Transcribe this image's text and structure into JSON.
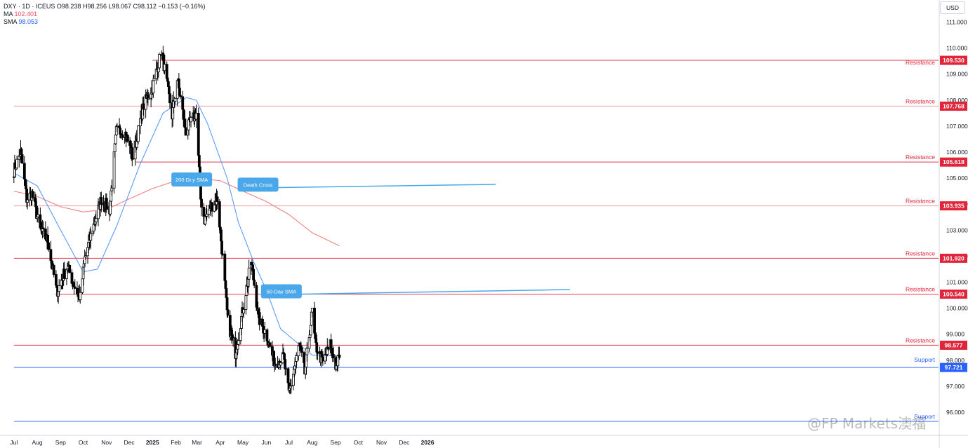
{
  "legend": {
    "symbol": "DXY · 1D · ICEUS",
    "open_label": "O",
    "open": "98.238",
    "high_label": "H",
    "high": "98.256",
    "low_label": "L",
    "low": "98.067",
    "close_label": "C",
    "close": "98.112",
    "change": "−0.153 (−0.16%)",
    "ma_label": "MA",
    "ma_value": "102.401",
    "sma_label": "SMA",
    "sma_value": "98.053"
  },
  "currency": "USD",
  "watermark": "@FP Markets澳福",
  "colors": {
    "up_candle": "#ffffff",
    "down_candle": "#000000",
    "resistance": "#e0243a",
    "support": "#2962ff",
    "sma50": "#5b9cf6",
    "sma200": "#f08080",
    "callout": "#4aa8ea"
  },
  "chart_data": {
    "type": "candlestick",
    "ylim": [
      95.7,
      111.6
    ],
    "y_ticks": [
      "111.000",
      "110.000",
      "109.000",
      "108.000",
      "107.000",
      "106.000",
      "105.000",
      "104.000",
      "103.000",
      "102.000",
      "101.000",
      "100.000",
      "99.000",
      "98.000",
      "97.000",
      "96.000"
    ],
    "x_ticks": [
      "Jul",
      "Aug",
      "Sep",
      "Oct",
      "Nov",
      "Dec",
      "2025",
      "Feb",
      "Mar",
      "Apr",
      "May",
      "Jun",
      "Jul",
      "Aug",
      "Sep",
      "Oct",
      "Nov",
      "Dec",
      "2026"
    ],
    "levels": [
      {
        "value": 109.53,
        "label": "Resistance",
        "tag": "109.530",
        "kind": "resistance",
        "start": "2025-01-01"
      },
      {
        "value": 107.768,
        "label": "Resistance",
        "tag": "107.768",
        "kind": "resistance",
        "start": "2024-07-01"
      },
      {
        "value": 105.618,
        "label": "Resistance",
        "tag": "105.618",
        "kind": "resistance",
        "start": "2024-12-10"
      },
      {
        "value": 103.935,
        "label": "Resistance",
        "tag": "103.935",
        "kind": "resistance",
        "start": "2024-07-01"
      },
      {
        "value": 101.92,
        "label": "Resistance",
        "tag": "101.920",
        "kind": "resistance",
        "start": "2024-07-01"
      },
      {
        "value": 100.54,
        "label": "Resistance",
        "tag": "100.540",
        "kind": "resistance",
        "start": "2024-08-25"
      },
      {
        "value": 98.577,
        "label": "Resistance",
        "tag": "98.577",
        "kind": "resistance",
        "start": "2024-07-01"
      },
      {
        "value": 97.721,
        "label": "Support",
        "tag": "97.721",
        "kind": "support",
        "start": "2024-07-01"
      },
      {
        "value": 95.65,
        "label": "Support",
        "tag": "",
        "kind": "support",
        "start": "2024-07-01"
      }
    ],
    "annotations": [
      {
        "text": "Death Cross",
        "x": "2025-04-24",
        "y": 104.75
      },
      {
        "text": "200 Day SMA",
        "x": "2025-01-26",
        "y": 104.95
      },
      {
        "text": "50-Day SMA",
        "x": "2025-05-25",
        "y": 100.65
      }
    ],
    "anchors": [
      [
        "2024-07-01",
        105.3
      ],
      [
        "2024-07-10",
        106.0
      ],
      [
        "2024-07-18",
        104.2
      ],
      [
        "2024-07-25",
        104.4
      ],
      [
        "2024-08-05",
        103.0
      ],
      [
        "2024-08-15",
        102.6
      ],
      [
        "2024-08-27",
        100.6
      ],
      [
        "2024-09-05",
        101.3
      ],
      [
        "2024-09-10",
        101.6
      ],
      [
        "2024-09-20",
        100.8
      ],
      [
        "2024-09-27",
        100.4
      ],
      [
        "2024-10-03",
        101.9
      ],
      [
        "2024-10-15",
        103.2
      ],
      [
        "2024-10-25",
        104.2
      ],
      [
        "2024-11-05",
        103.8
      ],
      [
        "2024-11-14",
        106.8
      ],
      [
        "2024-11-25",
        106.8
      ],
      [
        "2024-12-06",
        105.8
      ],
      [
        "2024-12-20",
        107.8
      ],
      [
        "2025-01-01",
        108.5
      ],
      [
        "2025-01-13",
        109.9
      ],
      [
        "2025-01-27",
        107.4
      ],
      [
        "2025-02-03",
        108.8
      ],
      [
        "2025-02-14",
        106.8
      ],
      [
        "2025-02-28",
        107.5
      ],
      [
        "2025-03-06",
        104.2
      ],
      [
        "2025-03-11",
        103.4
      ],
      [
        "2025-03-19",
        103.9
      ],
      [
        "2025-03-28",
        104.2
      ],
      [
        "2025-04-03",
        102.3
      ],
      [
        "2025-04-11",
        99.5
      ],
      [
        "2025-04-21",
        98.3
      ],
      [
        "2025-05-12",
        101.8
      ],
      [
        "2025-05-22",
        99.6
      ],
      [
        "2025-06-01",
        99.0
      ],
      [
        "2025-06-12",
        97.9
      ],
      [
        "2025-06-24",
        98.1
      ],
      [
        "2025-07-01",
        96.7
      ],
      [
        "2025-07-15",
        98.6
      ],
      [
        "2025-07-22",
        97.5
      ],
      [
        "2025-08-01",
        99.9
      ],
      [
        "2025-08-05",
        98.6
      ],
      [
        "2025-08-15",
        97.9
      ],
      [
        "2025-08-25",
        98.6
      ],
      [
        "2025-09-01",
        97.8
      ],
      [
        "2025-09-06",
        98.1
      ]
    ],
    "sma50": [
      [
        "2024-07-01",
        105.2
      ],
      [
        "2024-08-01",
        104.7
      ],
      [
        "2024-09-01",
        103.0
      ],
      [
        "2024-10-01",
        101.4
      ],
      [
        "2024-10-20",
        101.5
      ],
      [
        "2024-11-15",
        103.2
      ],
      [
        "2024-12-15",
        105.5
      ],
      [
        "2025-01-15",
        107.5
      ],
      [
        "2025-02-15",
        108.1
      ],
      [
        "2025-02-28",
        108.0
      ],
      [
        "2025-03-15",
        107.1
      ],
      [
        "2025-04-10",
        105.0
      ],
      [
        "2025-04-25",
        103.3
      ],
      [
        "2025-05-15",
        101.8
      ],
      [
        "2025-06-01",
        100.7
      ],
      [
        "2025-06-20",
        99.2
      ],
      [
        "2025-07-15",
        98.6
      ],
      [
        "2025-08-01",
        98.2
      ],
      [
        "2025-08-20",
        98.2
      ],
      [
        "2025-09-06",
        98.1
      ]
    ],
    "sma200": [
      [
        "2024-07-01",
        104.5
      ],
      [
        "2024-08-01",
        104.3
      ],
      [
        "2024-09-01",
        103.9
      ],
      [
        "2024-10-01",
        103.7
      ],
      [
        "2024-11-01",
        103.8
      ],
      [
        "2024-12-01",
        104.2
      ],
      [
        "2025-01-01",
        104.6
      ],
      [
        "2025-02-01",
        104.9
      ],
      [
        "2025-03-01",
        105.0
      ],
      [
        "2025-04-01",
        104.9
      ],
      [
        "2025-05-01",
        104.5
      ],
      [
        "2025-06-01",
        104.1
      ],
      [
        "2025-07-01",
        103.6
      ],
      [
        "2025-08-01",
        102.9
      ],
      [
        "2025-09-06",
        102.4
      ]
    ]
  }
}
